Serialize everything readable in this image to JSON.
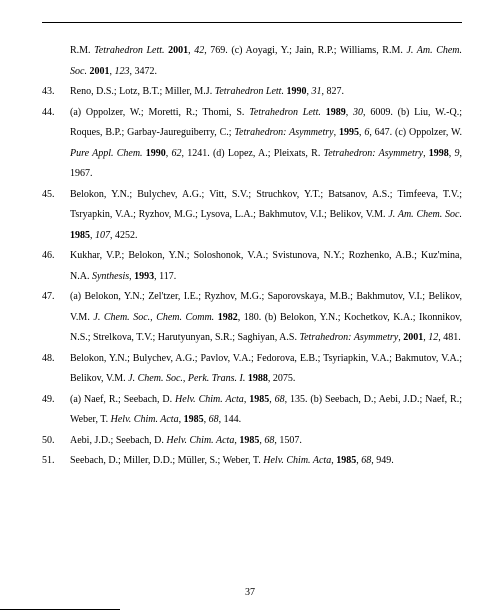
{
  "page_number": "37",
  "font_size_pt": 10,
  "line_height": 2.05,
  "text_color": "#000000",
  "background_color": "#ffffff",
  "rule_color": "#000000",
  "references": [
    {
      "number": "",
      "html": "R.M. <span class=\"italic\">Tetrahedron Lett.</span> <span class=\"bold\">2001</span>, <span class=\"italic\">42</span>, 769. (c) Aoyagi, Y.; Jain, R.P.; Williams, R.M. <span class=\"italic\">J. Am. Chem. Soc.</span> <span class=\"bold\">2001</span>, <span class=\"italic\">123</span>, 3472.",
      "continuation": true
    },
    {
      "number": "43.",
      "html": "Reno, D.S.; Lotz, B.T.; Miller, M.J. <span class=\"italic\">Tetrahedron Lett.</span> <span class=\"bold\">1990</span>, <span class=\"italic\">31</span>, 827."
    },
    {
      "number": "44.",
      "html": "(a) Oppolzer, W.; Moretti, R.; Thomi, S. <span class=\"italic\">Tetrahedron Lett.</span> <span class=\"bold\">1989</span>, <span class=\"italic\">30</span>, 6009. (b) Liu, W.-Q.; Roques, B.P.; Garbay-Jaureguiberry, C.; <span class=\"italic\">Tetrahedron: Asymmetry</span>, <span class=\"bold\">1995</span>, <span class=\"italic\">6</span>, 647. (c) Oppolzer, W. <span class=\"italic\">Pure Appl. Chem.</span> <span class=\"bold\">1990</span>, <span class=\"italic\">62</span>, 1241. (d) Lopez, A.; Pleixats, R. <span class=\"italic\">Tetrahedron: Asymmetry</span>, <span class=\"bold\">1998</span>, <span class=\"italic\">9</span>, 1967."
    },
    {
      "number": "45.",
      "html": "Belokon, Y.N.; Bulychev, A.G.; Vitt, S.V.; Struchkov, Y.T.; Batsanov, A.S.; Timfeeva, T.V.; Tsryapkin, V.A.; Ryzhov, M.G.; Lysova, L.A.; Bakhmutov, V.I.; Belikov, V.M. <span class=\"italic\">J. Am. Chem. Soc.</span> <span class=\"bold\">1985</span>, <span class=\"italic\">107</span>, 4252."
    },
    {
      "number": "46.",
      "html": "Kukhar, V.P.; Belokon, Y.N.; Soloshonok, V.A.; Svistunova, N.Y.; Rozhenko, A.B.; Kuz'mina, N.A. <span class=\"italic\">Synthesis</span>, <span class=\"bold\">1993</span>, 117."
    },
    {
      "number": "47.",
      "html": "(a) Belokon, Y.N.; Zel'tzer, I.E.; Ryzhov, M.G.; Saporovskaya, M.B.; Bakhmutov, V.I.; Belikov, V.M. <span class=\"italic\">J. Chem. Soc., Chem. Comm.</span> <span class=\"bold\">1982</span>, 180. (b) Belokon, Y.N.; Kochetkov, K.A.; Ikonnikov, N.S.; Strelkova, T.V.; Harutyunyan, S.R.; Saghiyan, A.S. <span class=\"italic\">Tetrahedron: Asymmetry</span>, <span class=\"bold\">2001</span>, <span class=\"italic\">12</span>, 481."
    },
    {
      "number": "48.",
      "html": "Belokon, Y.N.; Bulychev, A.G.; Pavlov, V.A.; Fedorova, E.B.; Tsyriapkin, V.A.; Bakmutov, V.A.; Belikov, V.M. <span class=\"italic\">J. Chem. Soc., Perk. Trans. I.</span> <span class=\"bold\">1988</span>, 2075."
    },
    {
      "number": "49.",
      "html": "(a) Naef, R.; Seebach, D. <span class=\"italic\">Helv. Chim. Acta</span>, <span class=\"bold\">1985</span>, <span class=\"italic\">68</span>, 135. (b) Seebach, D.; Aebi, J.D.; Naef, R.; Weber, T. <span class=\"italic\">Helv. Chim. Acta</span>, <span class=\"bold\">1985</span>, <span class=\"italic\">68</span>, 144."
    },
    {
      "number": "50.",
      "html": "Aebi, J.D.; Seebach, D. <span class=\"italic\">Helv. Chim. Acta</span>, <span class=\"bold\">1985</span>, <span class=\"italic\">68</span>, 1507."
    },
    {
      "number": "51.",
      "html": "Seebach, D.; Miller, D.D.; Müller, S.; Weber, T. <span class=\"italic\">Helv. Chim. Acta</span>, <span class=\"bold\">1985</span>, <span class=\"italic\">68</span>, 949."
    }
  ]
}
